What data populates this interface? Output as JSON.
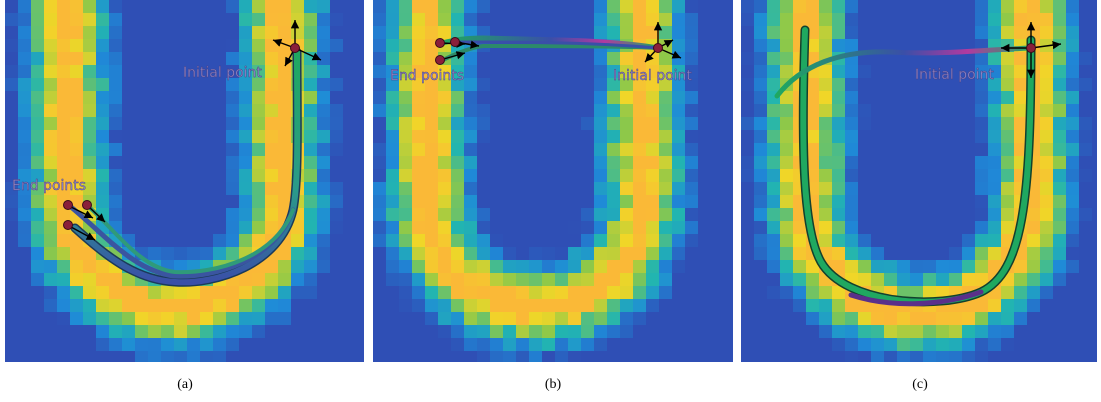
{
  "panels": [
    {
      "initial_label": "Initial point",
      "end_label": "End points",
      "caption": "(a)"
    },
    {
      "initial_label": "Initial point",
      "end_label": "End points",
      "caption": "(b)"
    },
    {
      "initial_label": "Initial point",
      "caption": "(c)"
    }
  ]
}
